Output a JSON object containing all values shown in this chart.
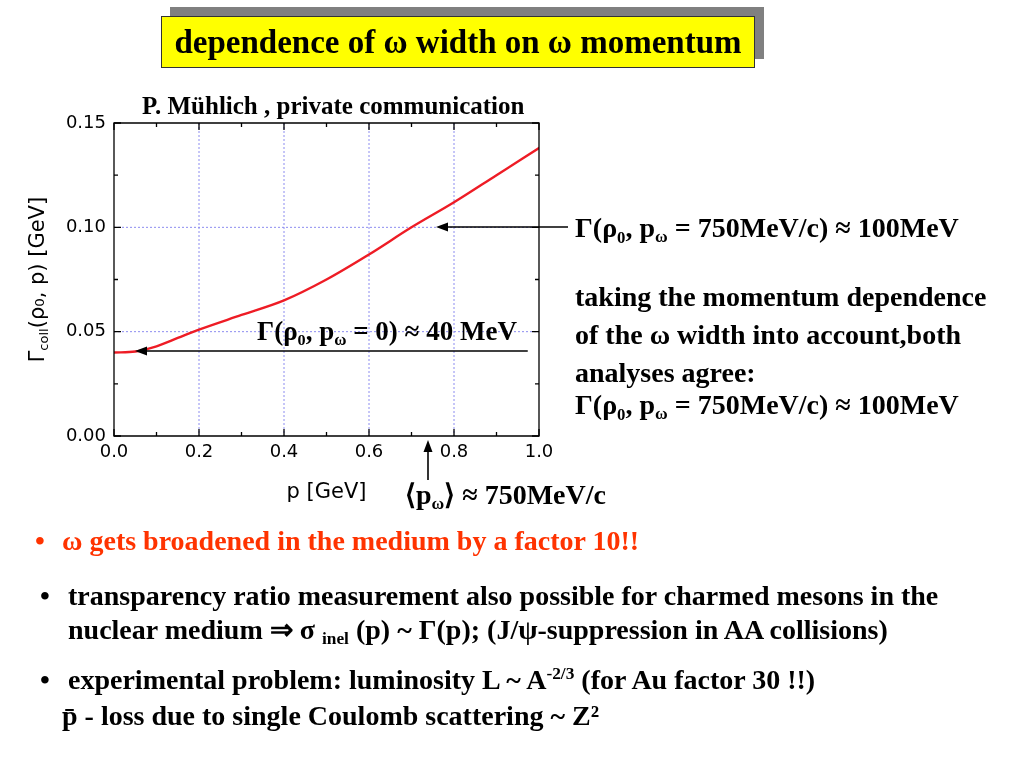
{
  "chart_data": {
    "type": "line",
    "title": "dependence of ω width on ω momentum",
    "xlabel": "p [GeV]",
    "ylabel": "Γ$_{coll}$(ρ₀, p) [GeV]",
    "x": [
      0,
      0.05,
      0.1,
      0.15,
      0.2,
      0.3,
      0.4,
      0.5,
      0.6,
      0.7,
      0.8,
      0.9,
      1.0
    ],
    "series": [
      {
        "color": "#ee1c25",
        "values": [
          0.04,
          0.0405,
          0.043,
          0.047,
          0.051,
          0.058,
          0.065,
          0.075,
          0.087,
          0.1,
          0.112,
          0.125,
          0.138
        ]
      }
    ],
    "xlim": [
      0,
      1
    ],
    "ylim": [
      0,
      0.15
    ],
    "xticks": [
      {
        "value": 0,
        "label": "0.0"
      },
      {
        "value": 0.1,
        "label": null
      },
      {
        "value": 0.2,
        "label": "0.2"
      },
      {
        "value": 0.3,
        "label": null
      },
      {
        "value": 0.4,
        "label": "0.4"
      },
      {
        "value": 0.5,
        "label": null
      },
      {
        "value": 0.6,
        "label": "0.6"
      },
      {
        "value": 0.7,
        "label": null
      },
      {
        "value": 0.8,
        "label": "0.8"
      },
      {
        "value": 0.9,
        "label": null
      },
      {
        "value": 1,
        "label": "1.0"
      }
    ],
    "yticks": [
      {
        "value": 0,
        "label": "0.00"
      },
      {
        "value": 0.025,
        "label": null
      },
      {
        "value": 0.05,
        "label": "0.05"
      },
      {
        "value": 0.075,
        "label": null
      },
      {
        "value": 0.1,
        "label": "0.10"
      },
      {
        "value": 0.125,
        "label": null
      },
      {
        "value": 0.15,
        "label": "0.15"
      }
    ],
    "grid": true,
    "annotations": [
      "P. Mühlich , private communication",
      {
        "text": "Γ(ρ₀, p$_{ω}$ = 0) ≈ 40 MeV",
        "x": 0.05,
        "y": 0.0405
      },
      "Γ(ρ₀, p$_{ω}$ = 750MeV/c) ≈ 100MeV",
      "⟨p$_{ω}$⟩ ≈ 750MeV/c",
      "taking the momentum dependence of the ω width into account,both analyses agree:",
      "Γ(ρ₀, p$_{ω}$ = 750MeV/c) ≈ 100MeV",
      "• ω gets broadened in the medium by a factor 10!!",
      "• transparency ratio measurement also possible for charmed mesons in the nuclear medium ⇒ σ $_{inel}$ (p) ~ Γ(p); (J/ψ-suppression in AA collisions)",
      "• experimental problem: luminosity L ~ A$^{-2/3}$ (for Au factor 30 !!)",
      "p̄ - loss due to single Coulomb scattering ~ Z²"
    ]
  }
}
